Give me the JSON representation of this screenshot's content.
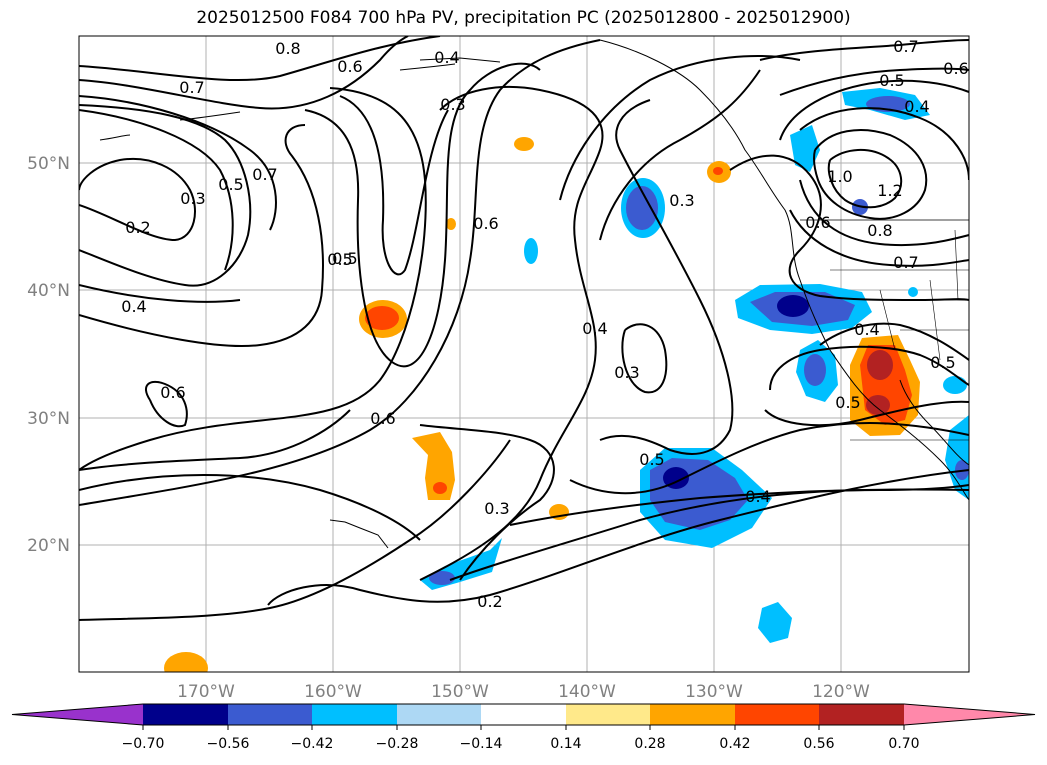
{
  "title": "2025012500 F084 700 hPa PV, precipitation PC (2025012800 - 2025012900)",
  "lon_ticks": [
    "170°W",
    "160°W",
    "150°W",
    "140°W",
    "130°W",
    "120°W"
  ],
  "lat_ticks": [
    "50°N",
    "40°N",
    "30°N",
    "20°N"
  ],
  "colorbar": {
    "colors": [
      "#9932cc",
      "#00008b",
      "#3b5bd0",
      "#00bfff",
      "#add8f4",
      "#ffffff",
      "#ffe98a",
      "#ffa500",
      "#ff4500",
      "#b22222",
      "#ff88aa"
    ],
    "labels": [
      "−0.70",
      "−0.56",
      "−0.42",
      "−0.28",
      "−0.14",
      "0.14",
      "0.28",
      "0.42",
      "0.56",
      "0.70"
    ]
  },
  "contour_labels": [
    "0.8",
    "0.6",
    "0.4",
    "0.7",
    "0.3",
    "0.5",
    "0.7",
    "0.3",
    "0.5",
    "0.2",
    "0.6",
    "0.5",
    "0.4",
    "0.6",
    "0.6",
    "0.4",
    "0.3",
    "0.3",
    "0.5",
    "0.3",
    "0.4",
    "0.2",
    "0.7",
    "0.5",
    "0.6",
    "0.4",
    "1.0",
    "1.2",
    "0.6",
    "0.8",
    "0.7",
    "0.4",
    "0.5",
    "0.5"
  ]
}
